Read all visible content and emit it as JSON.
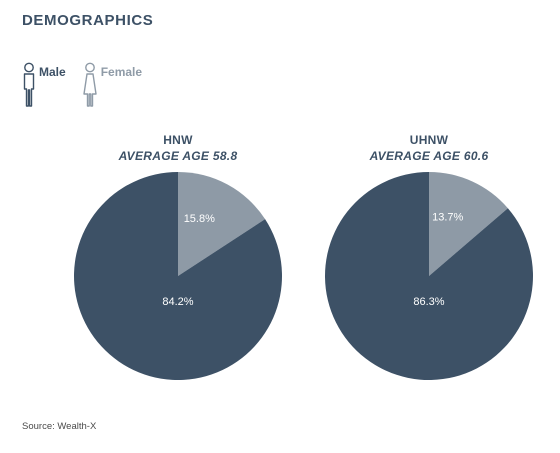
{
  "header": {
    "title": "DEMOGRAPHICS"
  },
  "legend": [
    {
      "label": "Male",
      "icon": "male-person-icon"
    },
    {
      "label": "Female",
      "icon": "female-person-icon"
    }
  ],
  "colors": {
    "male": "#3d5166",
    "female": "#8e9aa6",
    "text": "#3d5166"
  },
  "chart_data": [
    {
      "type": "pie",
      "title": "HNW",
      "subtitle": "AVERAGE AGE 58.8",
      "labels": [
        "Female",
        "Male"
      ],
      "values": [
        15.8,
        84.2
      ],
      "value_labels": [
        "15.8%",
        "84.2%"
      ]
    },
    {
      "type": "pie",
      "title": "UHNW",
      "subtitle": "AVERAGE AGE 60.6",
      "labels": [
        "Female",
        "Male"
      ],
      "values": [
        13.7,
        86.3
      ],
      "value_labels": [
        "13.7%",
        "86.3%"
      ]
    }
  ],
  "footer": {
    "source": "Source: Wealth-X"
  }
}
